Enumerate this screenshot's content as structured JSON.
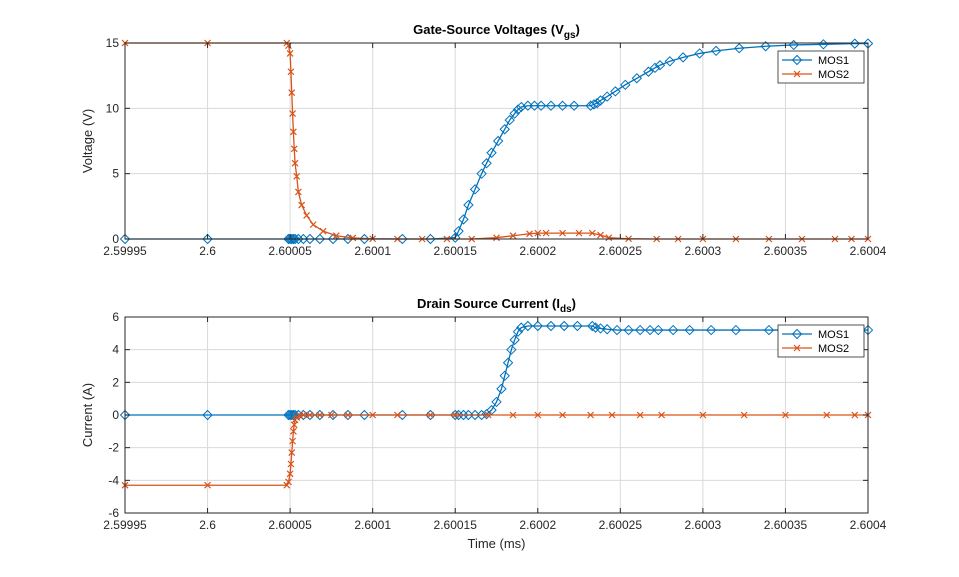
{
  "colors": {
    "mos1": "#0072BD",
    "mos2": "#D95319",
    "grid": "#d9d9d9",
    "axis": "#262626"
  },
  "chart_data": [
    {
      "type": "line",
      "title": "Gate-Source  Voltages  (V",
      "title_sub": "gs",
      "title_end": ")",
      "xlabel": "",
      "ylabel": "Voltage (V)",
      "xlim": [
        2.59995,
        2.6004
      ],
      "ylim": [
        0,
        15
      ],
      "xticks": [
        2.59995,
        2.6,
        2.60005,
        2.6001,
        2.60015,
        2.6002,
        2.60025,
        2.6003,
        2.60035,
        2.6004
      ],
      "xtick_labels": [
        "2.59995",
        "2.6",
        "2.60005",
        "2.6001",
        "2.60015",
        "2.6002",
        "2.60025",
        "2.6003",
        "2.60035",
        "2.6004"
      ],
      "yticks": [
        0,
        5,
        10,
        15
      ],
      "ytick_labels": [
        "0",
        "5",
        "10",
        "15"
      ],
      "grid": true,
      "legend": "top-right",
      "series": [
        {
          "name": "MOS1",
          "marker": "diamond",
          "x": [
            2.59995,
            2.6,
            2.600049,
            2.60005,
            2.600051,
            2.600052,
            2.600053,
            2.600055,
            2.600058,
            2.600062,
            2.600068,
            2.600076,
            2.600085,
            2.600095,
            2.600118,
            2.600135,
            2.60015,
            2.600152,
            2.600155,
            2.600158,
            2.600162,
            2.600166,
            2.600169,
            2.600172,
            2.600176,
            2.60018,
            2.600183,
            2.600186,
            2.600188,
            2.60019,
            2.600194,
            2.600198,
            2.600202,
            2.600208,
            2.600215,
            2.600222,
            2.600232,
            2.600234,
            2.600236,
            2.600238,
            2.600242,
            2.600247,
            2.600253,
            2.60026,
            2.600267,
            2.600271,
            2.600274,
            2.60028,
            2.600288,
            2.600298,
            2.600308,
            2.600322,
            2.600338,
            2.600355,
            2.600373,
            2.600392,
            2.6004
          ],
          "y": [
            0,
            0,
            0,
            0,
            0,
            0,
            0,
            0,
            0,
            0,
            0,
            0,
            0,
            0,
            0,
            0,
            0.1,
            0.6,
            1.5,
            2.6,
            3.8,
            5.0,
            5.8,
            6.6,
            7.5,
            8.4,
            9.1,
            9.6,
            9.9,
            10.1,
            10.2,
            10.2,
            10.2,
            10.2,
            10.2,
            10.2,
            10.2,
            10.3,
            10.4,
            10.6,
            10.9,
            11.3,
            11.8,
            12.3,
            12.8,
            13.1,
            13.3,
            13.6,
            13.9,
            14.2,
            14.4,
            14.6,
            14.75,
            14.85,
            14.9,
            14.95,
            14.96
          ]
        },
        {
          "name": "MOS2",
          "marker": "x",
          "x": [
            2.59995,
            2.6,
            2.600048,
            2.600049,
            2.60005,
            2.6000505,
            2.600051,
            2.6000515,
            2.600052,
            2.6000525,
            2.600053,
            2.600054,
            2.600055,
            2.600057,
            2.60006,
            2.600064,
            2.60007,
            2.600078,
            2.600088,
            2.6001,
            2.600115,
            2.60013,
            2.600145,
            2.60016,
            2.600175,
            2.600185,
            2.600195,
            2.6002,
            2.600205,
            2.600215,
            2.600225,
            2.600233,
            2.600238,
            2.600243,
            2.600255,
            2.600272,
            2.600285,
            2.6003,
            2.60032,
            2.60034,
            2.60036,
            2.60038,
            2.60039,
            2.6004
          ],
          "y": [
            15,
            15,
            15,
            14.8,
            14.2,
            12.8,
            11.2,
            9.6,
            8.2,
            6.9,
            5.8,
            4.8,
            3.6,
            2.6,
            1.8,
            1.1,
            0.6,
            0.25,
            0.08,
            0.02,
            0,
            0,
            0,
            0,
            0.1,
            0.25,
            0.4,
            0.45,
            0.45,
            0.45,
            0.45,
            0.45,
            0.3,
            0.1,
            0.02,
            0,
            0,
            0,
            0,
            0,
            0,
            0,
            0,
            0
          ]
        }
      ]
    },
    {
      "type": "line",
      "title": "Drain  Source  Current  (I",
      "title_sub": "ds",
      "title_end": ")",
      "xlabel": "Time (ms)",
      "ylabel": "Current (A)",
      "xlim": [
        2.59995,
        2.6004
      ],
      "ylim": [
        -6,
        6
      ],
      "xticks": [
        2.59995,
        2.6,
        2.60005,
        2.6001,
        2.60015,
        2.6002,
        2.60025,
        2.6003,
        2.60035,
        2.6004
      ],
      "xtick_labels": [
        "2.59995",
        "2.6",
        "2.60005",
        "2.6001",
        "2.60015",
        "2.6002",
        "2.60025",
        "2.6003",
        "2.60035",
        "2.6004"
      ],
      "yticks": [
        -6,
        -4,
        -2,
        0,
        2,
        4,
        6
      ],
      "ytick_labels": [
        "-6",
        "-4",
        "-2",
        "0",
        "2",
        "4",
        "6"
      ],
      "grid": true,
      "legend": "top-right",
      "series": [
        {
          "name": "MOS1",
          "marker": "diamond",
          "x": [
            2.59995,
            2.6,
            2.600049,
            2.60005,
            2.600051,
            2.600052,
            2.600053,
            2.600055,
            2.600058,
            2.600062,
            2.600068,
            2.600076,
            2.600085,
            2.600095,
            2.600118,
            2.600135,
            2.60015,
            2.600152,
            2.600155,
            2.600158,
            2.600162,
            2.600166,
            2.600169,
            2.600172,
            2.600175,
            2.600178,
            2.60018,
            2.600182,
            2.600184,
            2.600186,
            2.600188,
            2.60019,
            2.600194,
            2.6002,
            2.600208,
            2.600216,
            2.600224,
            2.600233,
            2.600235,
            2.600238,
            2.600242,
            2.600248,
            2.600255,
            2.600262,
            2.600268,
            2.600273,
            2.600282,
            2.600292,
            2.600305,
            2.60032,
            2.60034,
            2.600362,
            2.600385,
            2.6004
          ],
          "y": [
            0,
            0,
            0,
            0,
            0,
            0,
            0,
            0,
            0,
            0,
            0,
            0,
            0,
            0,
            0,
            0,
            0,
            0,
            0,
            0,
            0,
            0,
            0.05,
            0.3,
            0.8,
            1.6,
            2.4,
            3.2,
            4.0,
            4.6,
            5.1,
            5.35,
            5.45,
            5.45,
            5.45,
            5.45,
            5.45,
            5.45,
            5.35,
            5.3,
            5.25,
            5.2,
            5.2,
            5.2,
            5.2,
            5.2,
            5.2,
            5.2,
            5.2,
            5.2,
            5.2,
            5.2,
            5.2,
            5.2
          ]
        },
        {
          "name": "MOS2",
          "marker": "x",
          "x": [
            2.59995,
            2.6,
            2.600048,
            2.600049,
            2.60005,
            2.6000505,
            2.600051,
            2.6000515,
            2.600052,
            2.6000525,
            2.600053,
            2.600054,
            2.600056,
            2.600058,
            2.600062,
            2.600068,
            2.600075,
            2.600085,
            2.6001,
            2.600115,
            2.600135,
            2.60015,
            2.60017,
            2.600185,
            2.6002,
            2.600215,
            2.600232,
            2.600245,
            2.600262,
            2.600275,
            2.6003,
            2.600325,
            2.60035,
            2.600375,
            2.600392,
            2.6004
          ],
          "y": [
            -4.3,
            -4.3,
            -4.3,
            -4.1,
            -3.6,
            -3.0,
            -2.3,
            -1.6,
            -1.0,
            -0.6,
            -0.3,
            -0.15,
            -0.05,
            0,
            0,
            0,
            0,
            0,
            0,
            0,
            0,
            0,
            0,
            0,
            0,
            0,
            0,
            0,
            0,
            0,
            0,
            0,
            0,
            0,
            0,
            0
          ]
        }
      ]
    }
  ]
}
